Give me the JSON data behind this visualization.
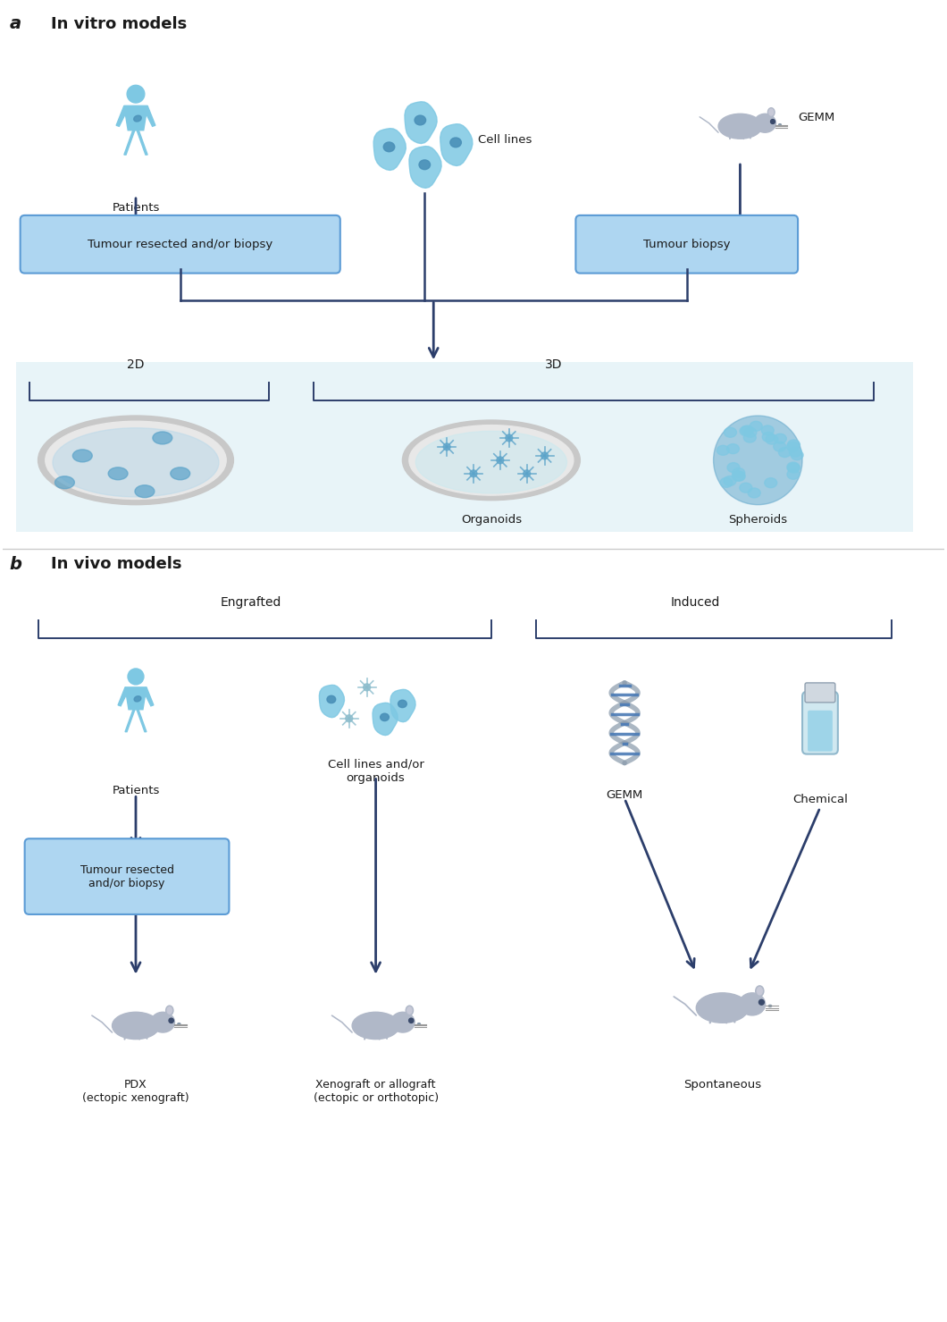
{
  "fig_width": 10.6,
  "fig_height": 14.79,
  "bg_color": "#ffffff",
  "light_blue_bg": "#e8f4f8",
  "box_fill": "#aed6f1",
  "box_edge": "#5b9bd5",
  "arrow_color": "#2c3e6b",
  "text_color": "#1a1a1a",
  "label_a": "a",
  "label_b": "b",
  "title_a": "In vitro models",
  "title_b": "In vivo models",
  "section_a_labels": [
    "Patients",
    "Cell lines",
    "GEMM"
  ],
  "box_a_left": "Tumour resected and/or biopsy",
  "box_a_right": "Tumour biopsy",
  "label_2d": "2D",
  "label_3d": "3D",
  "label_organoids": "Organoids",
  "label_spheroids": "Spheroids",
  "section_b_labels_top": [
    "Engrafted",
    "Induced"
  ],
  "section_b_sources": [
    "Patients",
    "Cell lines and/or\norganoids",
    "GEMM",
    "Chemical"
  ],
  "box_b": "Tumour resected\nand/or biopsy",
  "label_pdx": "PDX\n(ectopic xenograft)",
  "label_xenograft": "Xenograft or allograft\n(ectopic or orthotopic)",
  "label_spontaneous": "Spontaneous",
  "person_color": "#7ec8e3",
  "cell_color": "#5ba3c9",
  "mouse_color": "#b0b8c8",
  "dna_color": "#4a7ab5",
  "tube_color": "#a8d4e8"
}
